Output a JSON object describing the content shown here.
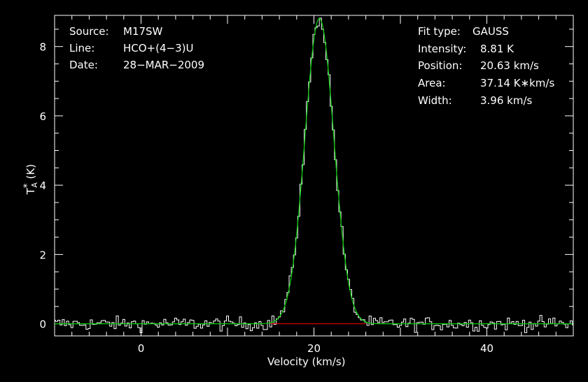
{
  "chart_data": {
    "type": "line",
    "xlabel": "Velocity (km/s)",
    "ylabel": "T",
    "ylabel_sub": "A",
    "ylabel_sup": "*",
    "ylabel_unit": " (K)",
    "xlim": [
      -10,
      50
    ],
    "ylim": [
      -0.35,
      8.9
    ],
    "x_ticks": [
      0,
      20,
      40
    ],
    "y_ticks": [
      0,
      2,
      4,
      6,
      8
    ],
    "header_left": [
      {
        "key": "Source:",
        "value": "M17SW"
      },
      {
        "key": "Line:",
        "value": "HCO+(4−3)U"
      },
      {
        "key": "Date:",
        "value": "28−MAR−2009"
      }
    ],
    "fit_left": [
      {
        "key": "Fit type:",
        "value": "GAUSS"
      },
      {
        "key": "Intensity:",
        "value": "8.81 K"
      },
      {
        "key": "Position:",
        "value": "20.63 km/s"
      },
      {
        "key": "Area:",
        "value": "37.14 K∗km/s"
      },
      {
        "key": "Width:",
        "value": "3.96 km/s"
      }
    ],
    "fit": {
      "peak": 8.81,
      "center": 20.63,
      "width": 3.96
    },
    "baseline": {
      "value": 0,
      "x_from": 15,
      "x_to": 26
    },
    "series": [
      {
        "type": "step",
        "color": "#ffffff",
        "style": "spectrum"
      },
      {
        "type": "line",
        "color": "#00d000",
        "style": "gaussian-fit"
      },
      {
        "type": "line",
        "color": "#ff0000",
        "style": "baseline"
      }
    ],
    "grid": false
  }
}
